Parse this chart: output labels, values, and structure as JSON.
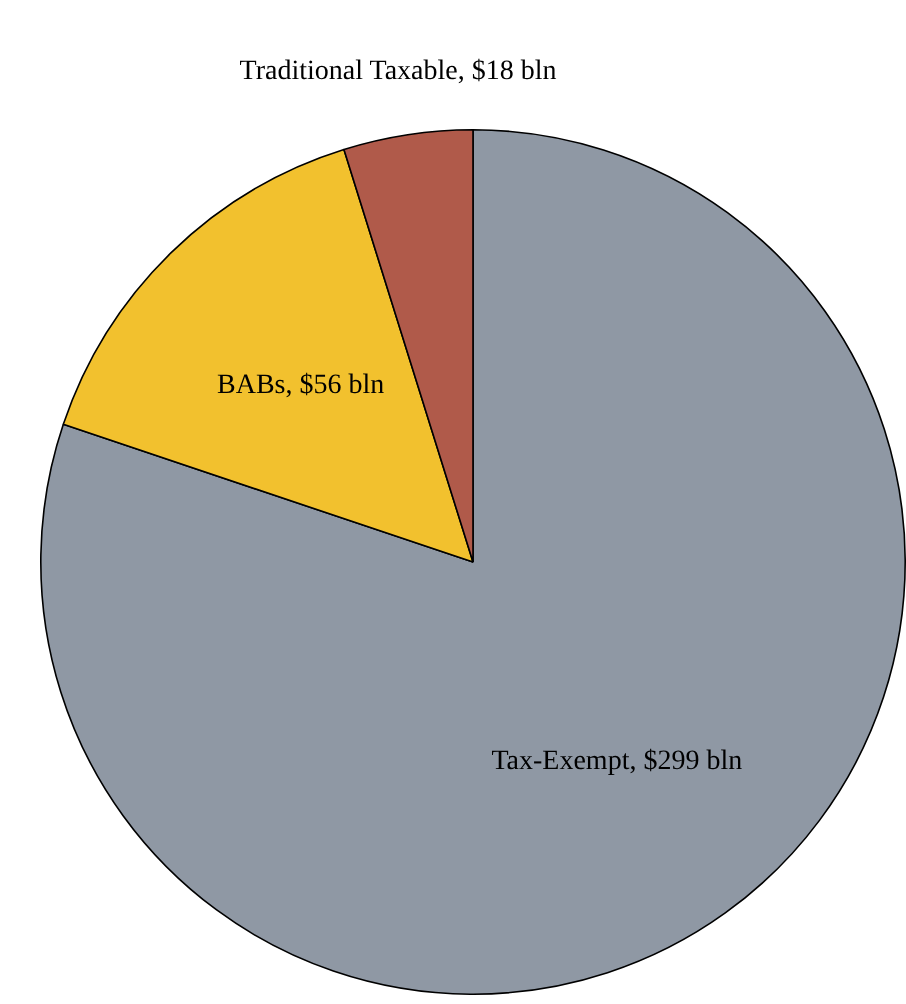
{
  "chart_data": {
    "type": "pie",
    "categories": [
      "Tax-Exempt",
      "BABs",
      "Traditional Taxable"
    ],
    "values": [
      299,
      56,
      18
    ],
    "colors": [
      "#8f98a4",
      "#f2c12e",
      "#b05a4a"
    ],
    "value_labels": [
      "$299 bln",
      "$56 bln",
      "$18 bln"
    ]
  }
}
